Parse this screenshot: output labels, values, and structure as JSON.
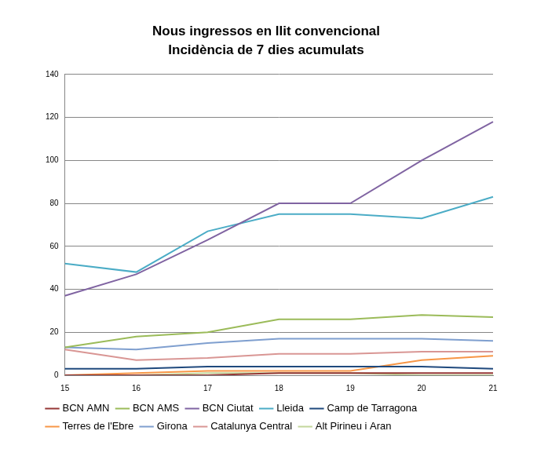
{
  "chart_data": {
    "type": "line",
    "title": "Nous ingressos en llit convencional",
    "subtitle": "Incidència de 7 dies acumulats",
    "categories": [
      "15",
      "16",
      "17",
      "18",
      "19",
      "20",
      "21"
    ],
    "series": [
      {
        "name": "BCN AMN",
        "color": "#953735",
        "values": [
          0,
          0,
          0,
          1,
          1,
          1,
          1
        ]
      },
      {
        "name": "BCN AMS",
        "color": "#9bbb59",
        "values": [
          13,
          18,
          20,
          26,
          26,
          28,
          27
        ]
      },
      {
        "name": "BCN Ciutat",
        "color": "#8064a2",
        "values": [
          37,
          47,
          63,
          80,
          80,
          100,
          118
        ]
      },
      {
        "name": "Lleida",
        "color": "#4bacc6",
        "values": [
          52,
          48,
          67,
          75,
          75,
          73,
          83
        ]
      },
      {
        "name": "Camp de Tarragona",
        "color": "#1f497d",
        "values": [
          3,
          3,
          4,
          4,
          4,
          4,
          3
        ]
      },
      {
        "name": "Terres de l'Ebre",
        "color": "#f79646",
        "values": [
          0,
          1,
          2,
          2,
          2,
          7,
          9
        ]
      },
      {
        "name": "Girona",
        "color": "#7f9fcf",
        "values": [
          13,
          12,
          15,
          17,
          17,
          17,
          16
        ]
      },
      {
        "name": "Catalunya Central",
        "color": "#d99694",
        "values": [
          12,
          7,
          8,
          10,
          10,
          11,
          11
        ]
      },
      {
        "name": "Alt Pirineu i Aran",
        "color": "#c3d69b",
        "values": [
          0,
          0,
          1,
          1,
          1,
          0,
          0
        ]
      }
    ],
    "ylim": [
      0,
      140
    ],
    "yticks": [
      0,
      20,
      40,
      60,
      80,
      100,
      120,
      140
    ],
    "grid": true,
    "legend": "bottom",
    "marker": "none"
  }
}
